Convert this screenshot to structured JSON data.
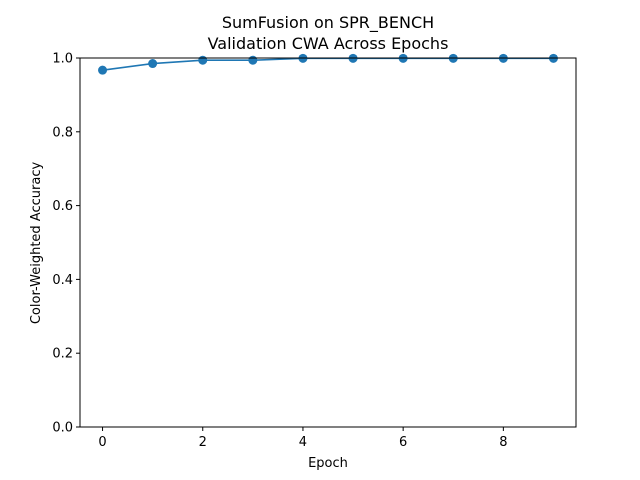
{
  "chart_data": {
    "type": "line",
    "title_line1": "SumFusion on SPR_BENCH",
    "title_line2": "Validation CWA Across Epochs",
    "xlabel": "Epoch",
    "ylabel": "Color-Weighted Accuracy",
    "x": [
      0,
      1,
      2,
      3,
      4,
      5,
      6,
      7,
      8,
      9
    ],
    "y": [
      0.967,
      0.985,
      0.994,
      0.994,
      0.999,
      0.999,
      0.999,
      0.999,
      0.999,
      0.999
    ],
    "xlim": [
      -0.45,
      9.45
    ],
    "ylim": [
      0,
      1
    ],
    "xticks": [
      0,
      2,
      4,
      6,
      8
    ],
    "yticks": [
      0.0,
      0.2,
      0.4,
      0.6,
      0.8,
      1.0
    ],
    "xtick_labels": [
      "0",
      "2",
      "4",
      "6",
      "8"
    ],
    "ytick_labels": [
      "0.0",
      "0.2",
      "0.4",
      "0.6",
      "0.8",
      "1.0"
    ],
    "grid": false,
    "line_color": "#1f77b4",
    "marker": "circle"
  }
}
